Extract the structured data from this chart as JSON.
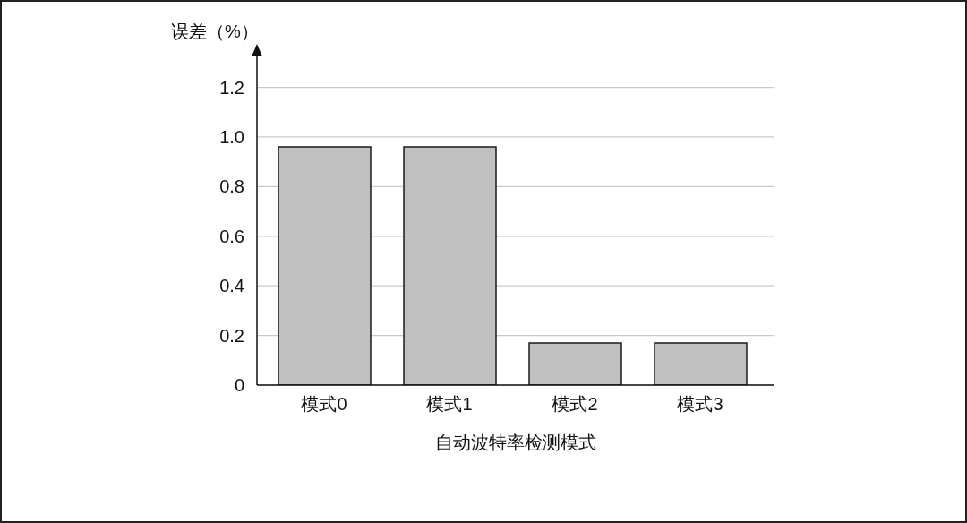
{
  "chart_data": {
    "type": "bar",
    "ylabel": "误差（%）",
    "xlabel": "自动波特率检测模式",
    "categories": [
      "模式0",
      "模式1",
      "模式2",
      "模式3"
    ],
    "values": [
      0.96,
      0.96,
      0.17,
      0.17
    ],
    "color": "#c0c0c0",
    "ylim": [
      0,
      1.35
    ],
    "yticks": [
      0,
      0.2,
      0.4,
      0.6,
      0.8,
      {
        "value": 1,
        "label": "1.0"
      },
      1.2
    ],
    "grid": "y"
  }
}
